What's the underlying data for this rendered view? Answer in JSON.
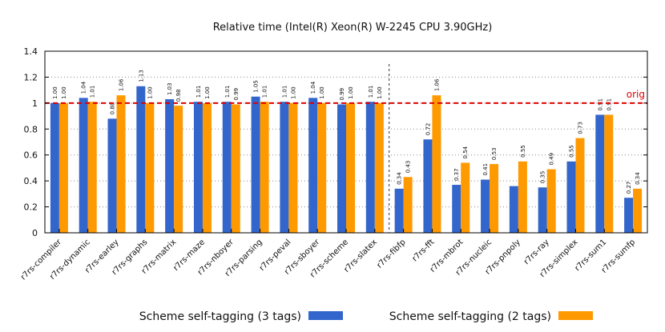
{
  "chart_data": {
    "type": "bar",
    "title": "Relative time (Intel(R) Xeon(R) W-2245 CPU 3.90GHz)",
    "xlabel": "",
    "ylabel": "",
    "ylim": [
      0,
      1.4
    ],
    "yticks": [
      "0",
      "0.2",
      "0.4",
      "0.6",
      "0.8",
      "1",
      "1.2",
      "1.4"
    ],
    "grid": "horizontal dotted",
    "legend_position": "bottom",
    "reference_line": {
      "value": 1.0,
      "label": "orig",
      "color": "#e00000"
    },
    "group_separator_after": "r7rs-slatex",
    "categories": [
      "r7rs-compiler",
      "r7rs-dynamic",
      "r7rs-earley",
      "r7rs-graphs",
      "r7rs-matrix",
      "r7rs-maze",
      "r7rs-nboyer",
      "r7rs-parsing",
      "r7rs-peval",
      "r7rs-sboyer",
      "r7rs-scheme",
      "r7rs-slatex",
      "r7rs-fibfp",
      "r7rs-fft",
      "r7rs-mbrot",
      "r7rs-nucleic",
      "r7rs-pnpoly",
      "r7rs-ray",
      "r7rs-simplex",
      "r7rs-sum1",
      "r7rs-sumfp"
    ],
    "series": [
      {
        "name": "Scheme self-tagging (3 tags)",
        "color": "#3366cc",
        "values": [
          1.0,
          1.04,
          0.88,
          1.13,
          1.03,
          1.01,
          1.01,
          1.05,
          1.01,
          1.04,
          0.99,
          1.01,
          0.34,
          0.72,
          0.37,
          0.41,
          0.36,
          0.35,
          0.55,
          0.91,
          0.27
        ],
        "labels": [
          "1.00",
          "1.04",
          "0.88",
          "1.13",
          "1.03",
          "1.01",
          "1.01",
          "1.05",
          "1.01",
          "1.04",
          "0.99",
          "1.01",
          "0.34",
          "0.72",
          "0.37",
          "0.41",
          "",
          "0.35",
          "0.55",
          "0.91",
          "0.27"
        ]
      },
      {
        "name": "Scheme self-tagging (2 tags)",
        "color": "#ff9900",
        "values": [
          1.0,
          1.01,
          1.06,
          1.0,
          0.98,
          1.0,
          0.99,
          1.01,
          1.0,
          1.0,
          1.0,
          1.0,
          0.43,
          1.06,
          0.54,
          0.53,
          0.55,
          0.49,
          0.73,
          0.91,
          0.34
        ],
        "labels": [
          "1.00",
          "1.01",
          "1.06",
          "1.00",
          "0.98",
          "1.00",
          "0.99",
          "1.01",
          "1.00",
          "1.00",
          "1.00",
          "1.00",
          "0.43",
          "1.06",
          "0.54",
          "0.53",
          "0.55",
          "0.49",
          "0.73",
          "0.91",
          "0.34"
        ]
      }
    ]
  }
}
